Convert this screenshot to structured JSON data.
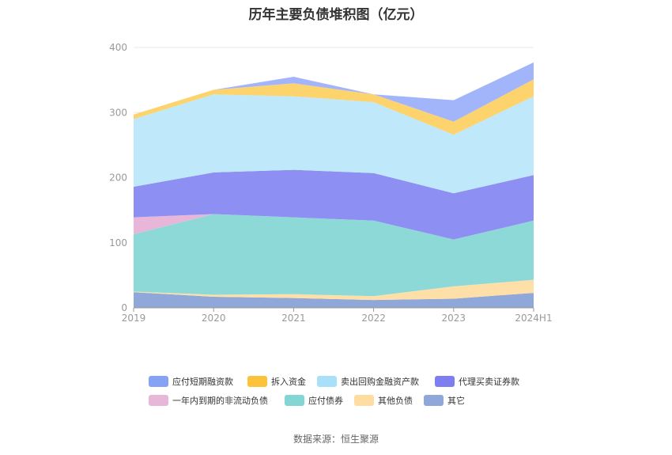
{
  "chart_data": {
    "type": "area",
    "stacked": true,
    "title": "历年主要负债堆积图（亿元）",
    "categories": [
      "2019",
      "2020",
      "2021",
      "2022",
      "2023",
      "2024H1"
    ],
    "ylim": [
      0,
      400
    ],
    "yticks": [
      0,
      100,
      200,
      300,
      400
    ],
    "grid": true,
    "legend_position": "bottom",
    "series": [
      {
        "name": "其它",
        "color": "#8fa8d9",
        "values": [
          24,
          17,
          15,
          12,
          14,
          23
        ]
      },
      {
        "name": "其他负债",
        "color": "#ffdfa8",
        "values": [
          1,
          3,
          6,
          6,
          19,
          20
        ]
      },
      {
        "name": "应付债券",
        "color": "#8dd9d8",
        "values": [
          88,
          124,
          118,
          116,
          72,
          91
        ]
      },
      {
        "name": "一年内到期的非流动负债",
        "color": "#e8b6d8",
        "values": [
          26,
          0,
          0,
          0,
          0,
          0
        ]
      },
      {
        "name": "代理买卖证券款",
        "color": "#8e8ff2",
        "values": [
          47,
          64,
          73,
          73,
          71,
          70
        ]
      },
      {
        "name": "卖出回购金融资产款",
        "color": "#bfe8fb",
        "values": [
          104,
          120,
          113,
          109,
          90,
          121
        ]
      },
      {
        "name": "拆入资金",
        "color": "#fdd36e",
        "values": [
          7,
          7,
          20,
          12,
          20,
          26
        ]
      },
      {
        "name": "应付短期融资款",
        "color": "#a2b5fa",
        "values": [
          0,
          0,
          10,
          0,
          33,
          26
        ]
      }
    ],
    "legend_rows": [
      [
        {
          "name": "应付短期融资款",
          "color": "#86a2f5"
        },
        {
          "name": "拆入资金",
          "color": "#fbc23a"
        },
        {
          "name": "卖出回购金融资产款",
          "color": "#a8e0f9"
        },
        {
          "name": "代理买卖证券款",
          "color": "#7d7ef0"
        }
      ],
      [
        {
          "name": "一年内到期的非流动负债",
          "color": "#e8b6d8"
        },
        {
          "name": "应付债券",
          "color": "#83d6d4"
        },
        {
          "name": "其他负债",
          "color": "#ffdca0"
        },
        {
          "name": "其它",
          "color": "#8fa8d9"
        }
      ]
    ]
  },
  "source": "数据来源：恒生聚源"
}
